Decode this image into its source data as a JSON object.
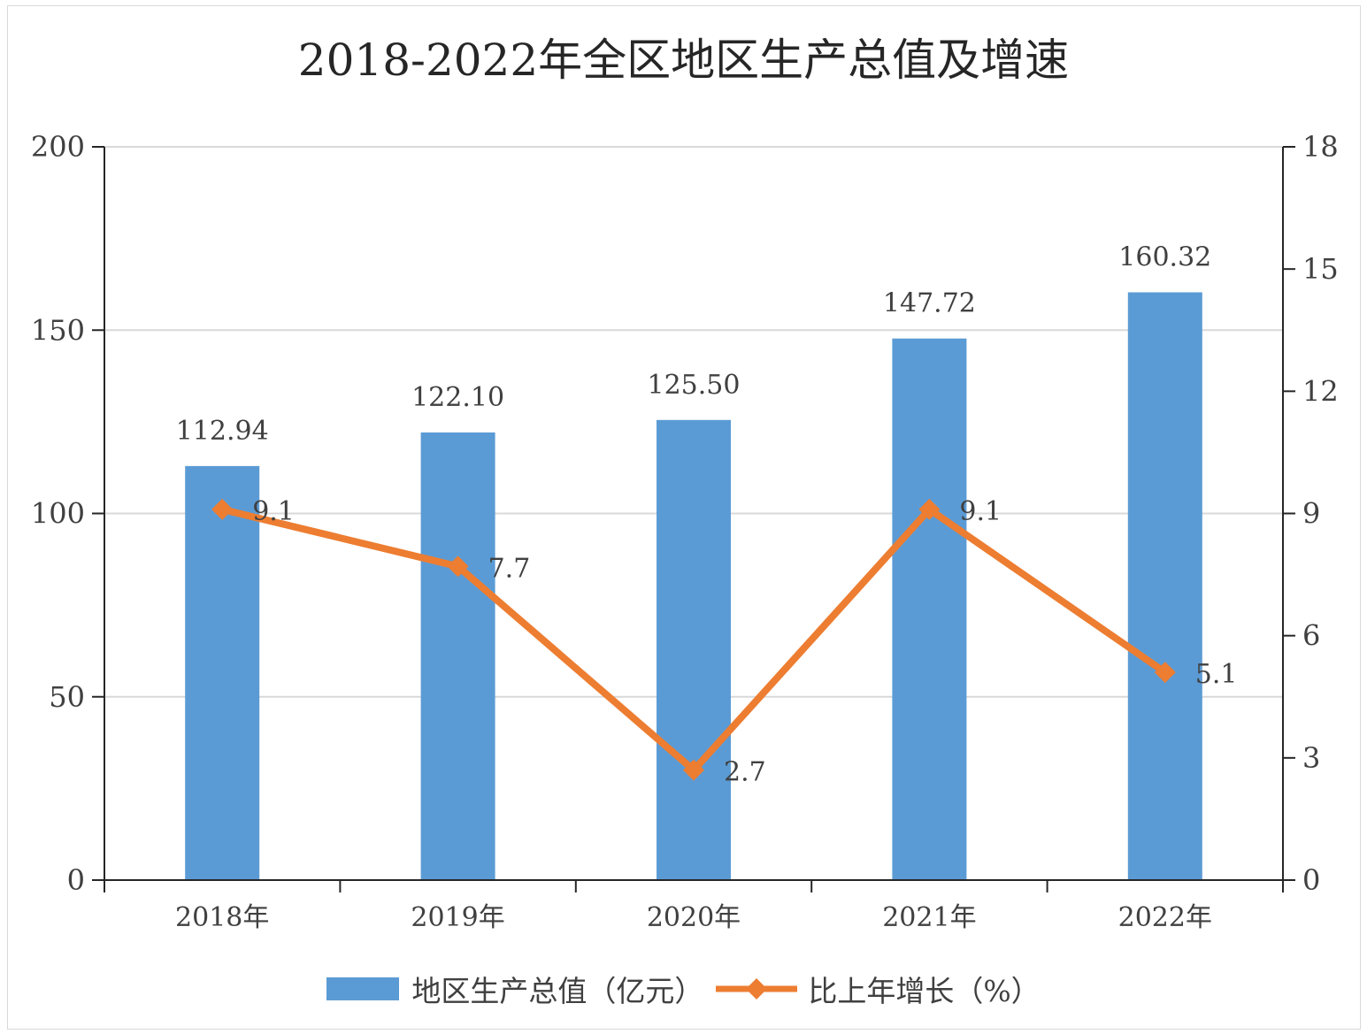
{
  "chart_data": {
    "type": "bar",
    "title": "2018-2022年全区地区生产总值及增速",
    "categories": [
      "2018年",
      "2019年",
      "2020年",
      "2021年",
      "2022年"
    ],
    "series": [
      {
        "name": "地区生产总值（亿元）",
        "type": "bar",
        "axis": "left",
        "values": [
          112.94,
          122.1,
          125.5,
          147.72,
          160.32
        ],
        "labels": [
          "112.94",
          "122.10",
          "125.50",
          "147.72",
          "160.32"
        ],
        "color": "#5b9bd5"
      },
      {
        "name": "比上年增长（%）",
        "type": "line",
        "axis": "right",
        "values": [
          9.1,
          7.7,
          2.7,
          9.1,
          5.1
        ],
        "labels": [
          "9.1",
          "7.7",
          "2.7",
          "9.1",
          "5.1"
        ],
        "color": "#ed7d31"
      }
    ],
    "y_left": {
      "min": 0,
      "max": 200,
      "ticks": [
        0,
        50,
        100,
        150,
        200
      ]
    },
    "y_right": {
      "min": 0,
      "max": 18,
      "ticks": [
        0,
        3,
        6,
        9,
        12,
        15,
        18
      ]
    },
    "grid": true,
    "legend_position": "bottom"
  }
}
